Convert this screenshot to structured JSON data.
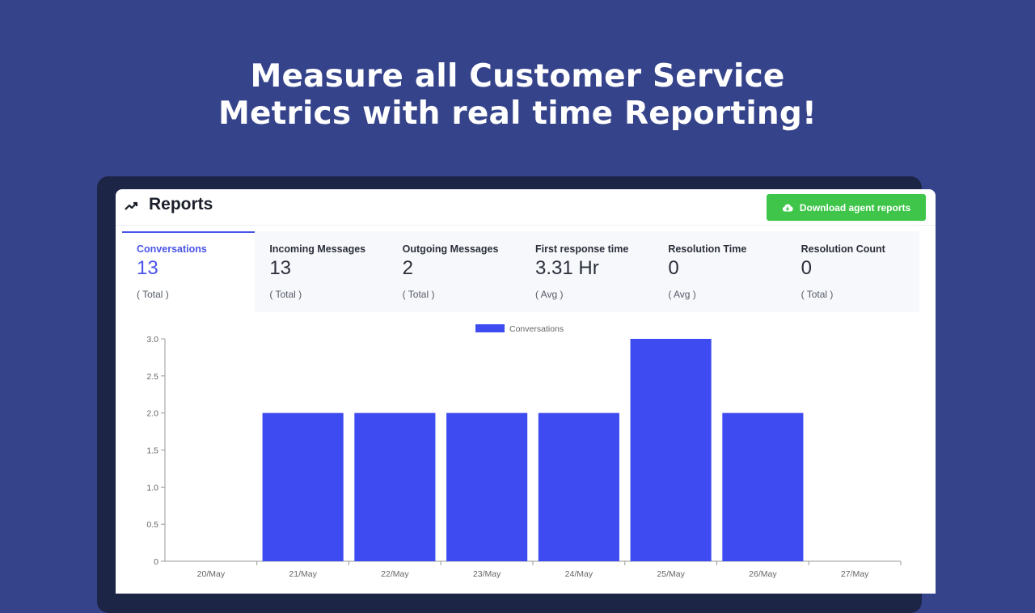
{
  "headline": {
    "line1": "Measure all Customer Service",
    "line2": "Metrics with real time Reporting!"
  },
  "header": {
    "title": "Reports",
    "title_icon": "trending-up-icon",
    "download_button": "Download agent reports",
    "download_icon": "cloud-download-icon",
    "download_color": "#3fc64a"
  },
  "metrics": [
    {
      "label": "Conversations",
      "value": "13",
      "sub": "( Total )",
      "active": true
    },
    {
      "label": "Incoming Messages",
      "value": "13",
      "sub": "( Total )"
    },
    {
      "label": "Outgoing Messages",
      "value": "2",
      "sub": "( Total )"
    },
    {
      "label": "First response time",
      "value": "3.31 Hr",
      "sub": "( Avg )"
    },
    {
      "label": "Resolution Time",
      "value": "0",
      "sub": "( Avg )"
    },
    {
      "label": "Resolution Count",
      "value": "0",
      "sub": "( Total )"
    }
  ],
  "colors": {
    "background": "#35438a",
    "accent": "#4a54e8",
    "bar": "#3d4bf0"
  },
  "chart_data": {
    "type": "bar",
    "categories": [
      "20/May",
      "21/May",
      "22/May",
      "23/May",
      "24/May",
      "25/May",
      "26/May",
      "27/May"
    ],
    "series": [
      {
        "name": "Conversations",
        "values": [
          0,
          2,
          2,
          2,
          2,
          3,
          2,
          0
        ],
        "color": "#3d4bf0"
      }
    ],
    "yticks": [
      "0",
      "0.5",
      "1.0",
      "1.5",
      "2.0",
      "2.5",
      "3.0"
    ],
    "ylim": [
      0,
      3
    ],
    "legend": "top-center",
    "grid": false
  }
}
